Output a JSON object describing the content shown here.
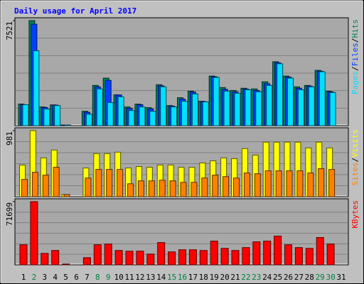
{
  "chart_data": [
    {
      "type": "bar",
      "title": "Daily usage for April 2017",
      "ylim": [
        0,
        7521
      ],
      "yticks": [
        7521
      ],
      "grid": true,
      "series": [
        {
          "name": "Hits",
          "color": "#00805c",
          "values": [
            1550,
            7521,
            1340,
            1490,
            50,
            0,
            1030,
            2880,
            3400,
            2210,
            1340,
            1545,
            1290,
            2930,
            1440,
            2000,
            2470,
            1750,
            3550,
            2730,
            2520,
            2680,
            2630,
            3140,
            4580,
            3550,
            2780,
            2880,
            3960,
            2470,
            0
          ]
        },
        {
          "name": "Files",
          "color": "#0040ff",
          "values": [
            1500,
            7260,
            1300,
            1470,
            50,
            0,
            960,
            2780,
            3245,
            2200,
            1250,
            1500,
            1200,
            2850,
            1400,
            1900,
            2400,
            1720,
            3500,
            2600,
            2420,
            2620,
            2520,
            3000,
            4500,
            3480,
            2680,
            2830,
            3900,
            2420,
            0
          ]
        },
        {
          "name": "Pages",
          "color": "#00e0ff",
          "values": [
            1500,
            5360,
            1190,
            1440,
            50,
            0,
            820,
            2630,
            1650,
            2060,
            1080,
            1340,
            1030,
            2780,
            1340,
            1750,
            2270,
            1700,
            3450,
            2470,
            2320,
            2570,
            2420,
            2880,
            4430,
            3400,
            2570,
            2780,
            3860,
            2370,
            0
          ]
        }
      ]
    },
    {
      "type": "bar",
      "ylim": [
        0,
        981
      ],
      "yticks": [
        981
      ],
      "grid": true,
      "series": [
        {
          "name": "Visits",
          "color": "#ffff00",
          "values": [
            470,
            981,
            576,
            693,
            32,
            0,
            426,
            640,
            640,
            661,
            426,
            448,
            437,
            470,
            470,
            437,
            437,
            501,
            533,
            576,
            565,
            714,
            618,
            810,
            810,
            810,
            810,
            725,
            810,
            725,
            0
          ]
        },
        {
          "name": "Sites",
          "color": "#ff8000",
          "values": [
            256,
            363,
            320,
            437,
            32,
            0,
            277,
            405,
            405,
            405,
            192,
            235,
            235,
            245,
            235,
            213,
            213,
            277,
            320,
            298,
            277,
            352,
            341,
            384,
            384,
            384,
            384,
            352,
            416,
            405,
            0
          ]
        }
      ]
    },
    {
      "type": "bar",
      "ylim": [
        0,
        71699
      ],
      "yticks": [
        71699
      ],
      "grid": true,
      "categories": [
        "1",
        "2",
        "3",
        "4",
        "5",
        "6",
        "7",
        "8",
        "9",
        "10",
        "11",
        "12",
        "13",
        "14",
        "15",
        "16",
        "17",
        "18",
        "19",
        "20",
        "21",
        "22",
        "23",
        "24",
        "25",
        "26",
        "27",
        "28",
        "29",
        "30",
        "31"
      ],
      "category_colors": [
        "#000000",
        "#008040",
        "#000000",
        "#000000",
        "#000000",
        "#000000",
        "#000000",
        "#008040",
        "#008040",
        "#000000",
        "#000000",
        "#000000",
        "#000000",
        "#000000",
        "#008040",
        "#008040",
        "#000000",
        "#000000",
        "#000000",
        "#000000",
        "#000000",
        "#008040",
        "#008040",
        "#000000",
        "#000000",
        "#000000",
        "#000000",
        "#000000",
        "#008040",
        "#008040",
        "#000000"
      ],
      "series": [
        {
          "name": "KBytes",
          "color": "#ff0000",
          "values": [
            22800,
            71699,
            13000,
            16300,
            800,
            0,
            8150,
            22800,
            23600,
            16300,
            15500,
            15500,
            12200,
            25300,
            14700,
            17100,
            17100,
            16300,
            26900,
            18700,
            16300,
            19600,
            26100,
            26900,
            32600,
            22800,
            19600,
            18700,
            31000,
            23600,
            0
          ]
        }
      ]
    }
  ],
  "legend_separator": "/"
}
